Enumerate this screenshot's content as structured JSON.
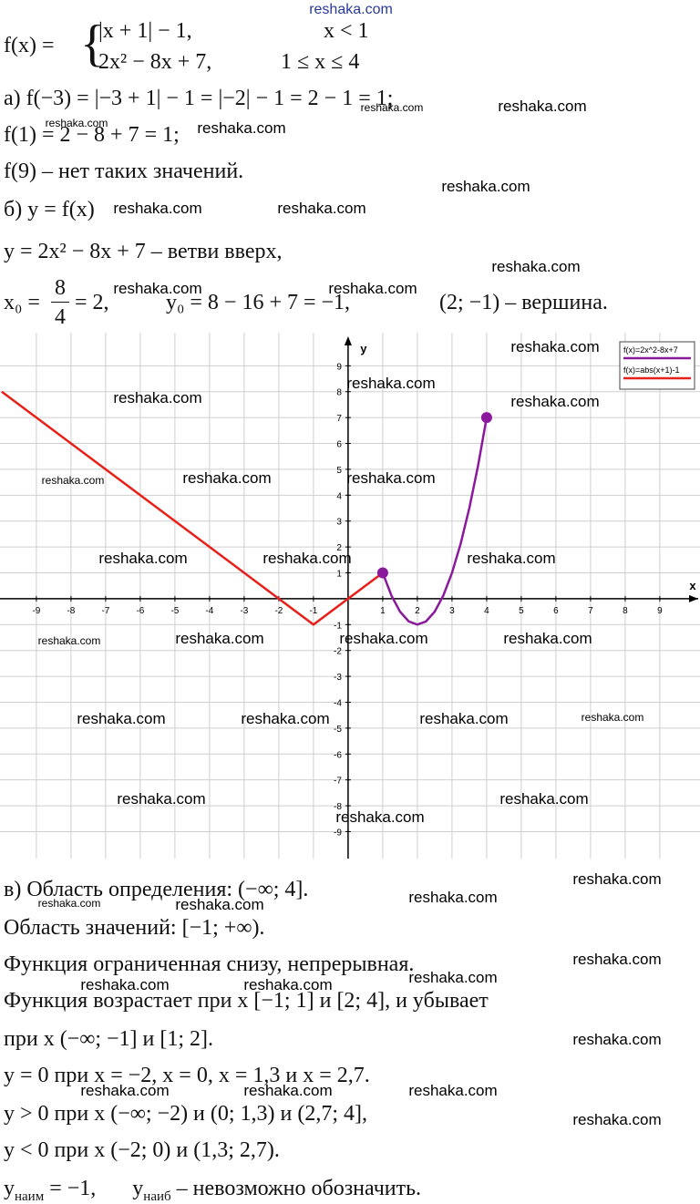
{
  "definition": {
    "lhs": "f(x) =",
    "cases": [
      [
        "|x + 1| − 1,",
        "x < 1"
      ],
      [
        "2x² − 8x + 7,",
        "1 ≤ x ≤ 4"
      ]
    ]
  },
  "part_a": [
    "а) f(−3) = |−3 + 1| − 1 = |−2| − 1 = 2 − 1 = 1;",
    "f(1) = 2 − 8 + 7 = 1;",
    "f(9) – нет таких значений."
  ],
  "part_b": {
    "lines": [
      "б) y = f(x)",
      "y = 2x² − 8x + 7 – ветви вверх,"
    ],
    "vertex": {
      "x0": "x₀ =",
      "num": "8",
      "den": "4",
      "x0_rest": "= 2,",
      "y0": "y₀ = 8 − 16 + 7 = −1,",
      "point": "(2; −1) – вершина."
    }
  },
  "graph": {
    "type": "line",
    "x_label": "x",
    "y_label": "y",
    "xlim": [
      -10.05,
      10.16
    ],
    "ylim": [
      -10.04,
      10.28
    ],
    "xticks": [
      -9,
      -8,
      -7,
      -6,
      -5,
      -4,
      -3,
      -2,
      -1,
      1,
      2,
      3,
      4,
      5,
      6,
      7,
      8,
      9
    ],
    "yticks": [
      -9,
      -8,
      -7,
      -6,
      -5,
      -4,
      -3,
      -2,
      -1,
      1,
      2,
      3,
      4,
      5,
      6,
      7,
      8,
      9
    ],
    "grid": true,
    "series": [
      {
        "name": "f(x)=2x^2-8x+7",
        "color": "#8a1a9b",
        "x": [
          1,
          1.25,
          1.5,
          1.75,
          2,
          2.25,
          2.5,
          2.75,
          3,
          3.25,
          3.5,
          3.75,
          4
        ],
        "values": [
          1,
          0.125,
          -0.5,
          -0.875,
          -1,
          -0.875,
          -0.5,
          0.125,
          1,
          2.125,
          3.5,
          5.125,
          7
        ]
      },
      {
        "name": "f(x)=abs(x+1)-1",
        "color": "#e8201a",
        "x": [
          -10,
          -1,
          1
        ],
        "values": [
          8,
          -1,
          1
        ]
      }
    ],
    "points": {
      "color": "#8a1a9b",
      "x": [
        1,
        4
      ],
      "values": [
        1,
        7
      ]
    }
  },
  "part_c": {
    "lines": [
      "в) Область определения: (−∞; 4].",
      "Область значений: [−1; +∞).",
      "Функция ограниченная снизу, непрерывная.",
      "Функция возрастает при x [−1; 1] и [2; 4], и убывает",
      "при x (−∞; −1] и [1; 2].",
      "y = 0 при x = −2, x = 0, x = 1,3 и x = 2,7.",
      "y > 0 при x (−∞; −2) и (0; 1,3) и (2,7; 4],",
      "y < 0 при x (−2; 0) и (1,3; 2,7)."
    ],
    "last": {
      "a": "y",
      "a_sub": "наим",
      "b": "= −1,",
      "c": "y",
      "c_sub": "наиб",
      "d": "– невозможно обозначить."
    }
  },
  "watermarks": [
    "reshaka.com",
    "reshaka.com",
    "reshaka.com",
    "reshaka.com",
    "reshaka.com",
    "reshaka.com",
    "reshaka.com",
    "reshaka.com",
    "reshaka.com",
    "reshaka.com",
    "reshaka.com",
    "reshaka.com",
    "reshaka.com",
    "reshaka.com",
    "reshaka.com",
    "reshaka.com",
    "reshaka.com",
    "reshaka.com",
    "reshaka.com",
    "reshaka.com",
    "reshaka.com",
    "reshaka.com",
    "reshaka.com",
    "reshaka.com",
    "reshaka.com",
    "reshaka.com",
    "reshaka.com",
    "reshaka.com",
    "reshaka.com",
    "reshaka.com",
    "reshaka.com",
    "reshaka.com",
    "reshaka.com",
    "reshaka.com",
    "reshaka.com",
    "reshaka.com",
    "reshaka.com",
    "reshaka.com",
    "reshaka.com",
    "reshaka.com",
    "reshaka.com",
    "reshaka.com",
    "reshaka.com",
    "reshaka.com",
    "reshaka.com"
  ]
}
